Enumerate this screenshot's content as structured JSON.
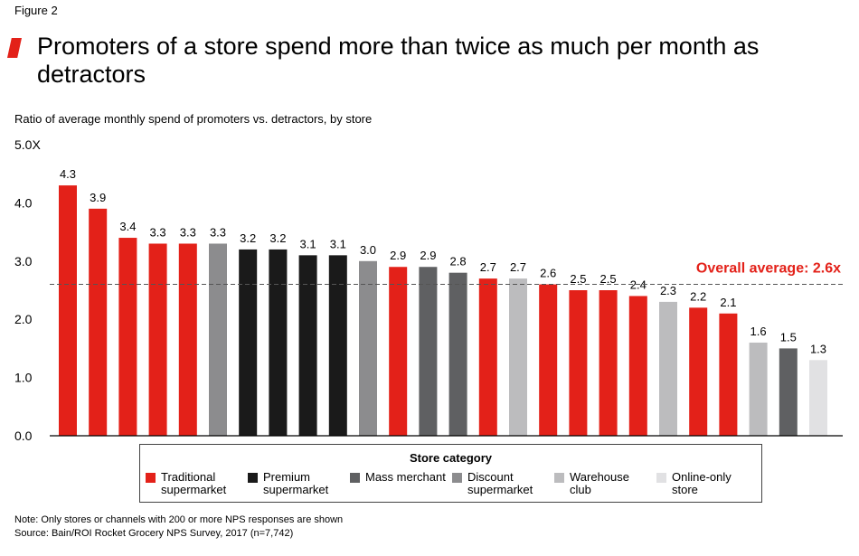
{
  "figure_label": "Figure 2",
  "title": "Promoters of a store spend more than twice as much per month as detractors",
  "chart_data": {
    "type": "bar",
    "subtitle": "Ratio of average monthly spend of promoters vs. detractors, by store",
    "y_tick_labels": [
      "0.0",
      "1.0",
      "2.0",
      "3.0",
      "4.0",
      "5.0X"
    ],
    "y_ticks": [
      0,
      1,
      2,
      3,
      4,
      5
    ],
    "ylim": [
      0,
      5
    ],
    "values": [
      4.3,
      3.9,
      3.4,
      3.3,
      3.3,
      3.3,
      3.2,
      3.2,
      3.1,
      3.1,
      3.0,
      2.9,
      2.9,
      2.8,
      2.7,
      2.7,
      2.6,
      2.5,
      2.5,
      2.4,
      2.3,
      2.2,
      2.1,
      1.6,
      1.5,
      1.3
    ],
    "value_labels": [
      "4.3",
      "3.9",
      "3.4",
      "3.3",
      "3.3",
      "3.3",
      "3.2",
      "3.2",
      "3.1",
      "3.1",
      "3.0",
      "2.9",
      "2.9",
      "2.8",
      "2.7",
      "2.7",
      "2.6",
      "2.5",
      "2.5",
      "2.4",
      "2.3",
      "2.2",
      "2.1",
      "1.6",
      "1.5",
      "1.3"
    ],
    "bar_categories": [
      "traditional",
      "traditional",
      "traditional",
      "traditional",
      "traditional",
      "discount",
      "premium",
      "premium",
      "premium",
      "premium",
      "discount",
      "traditional",
      "mass",
      "mass",
      "traditional",
      "warehouse",
      "traditional",
      "traditional",
      "traditional",
      "traditional",
      "warehouse",
      "traditional",
      "traditional",
      "warehouse",
      "mass",
      "online"
    ],
    "average": {
      "value": 2.6,
      "label": "Overall average: 2.6x",
      "color": "#e32119"
    },
    "legend": {
      "title": "Store category",
      "items": [
        {
          "key": "traditional",
          "label": "Traditional supermarket",
          "color": "#e32119"
        },
        {
          "key": "premium",
          "label": "Premium supermarket",
          "color": "#1a1a1a"
        },
        {
          "key": "mass",
          "label": "Mass merchant",
          "color": "#5f6062"
        },
        {
          "key": "discount",
          "label": "Discount supermarket",
          "color": "#8c8c8e"
        },
        {
          "key": "warehouse",
          "label": "Warehouse club",
          "color": "#bcbcbe"
        },
        {
          "key": "online",
          "label": "Online-only store",
          "color": "#e1e1e3"
        }
      ]
    }
  },
  "notes": {
    "note": "Note: Only stores or channels with 200 or more NPS responses are shown",
    "source": "Source: Bain/ROI Rocket Grocery NPS Survey, 2017 (n=7,742)"
  }
}
